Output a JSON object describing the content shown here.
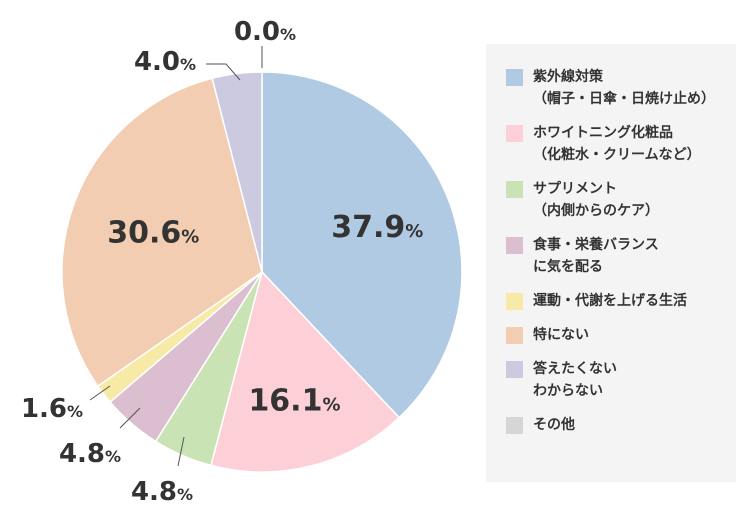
{
  "chart_data": {
    "type": "pie",
    "categories": [
      "紫外線対策\n（帽子・日傘・日焼け止め）",
      "ホワイトニング化粧品\n（化粧水・クリームなど）",
      "サプリメント\n（内側からのケア）",
      "食事・栄養バランス\nに気を配る",
      "運動・代謝を上げる生活",
      "特にない",
      "答えたくない\nわからない",
      "その他"
    ],
    "values": [
      37.9,
      16.1,
      4.8,
      4.8,
      1.6,
      30.6,
      4.0,
      0.0
    ],
    "colors": [
      "#afcae2",
      "#fdcfd7",
      "#c9e3b5",
      "#dbbed0",
      "#f7eaa6",
      "#f3cdb1",
      "#cbcae0",
      "#d6d6d6"
    ],
    "value_labels": [
      "37.9",
      "16.1",
      "4.8",
      "4.8",
      "1.6",
      "30.6",
      "4.0",
      "0.0"
    ],
    "unit": "%",
    "legend_position": "right",
    "start_angle_deg": 0,
    "direction": "clockwise"
  }
}
